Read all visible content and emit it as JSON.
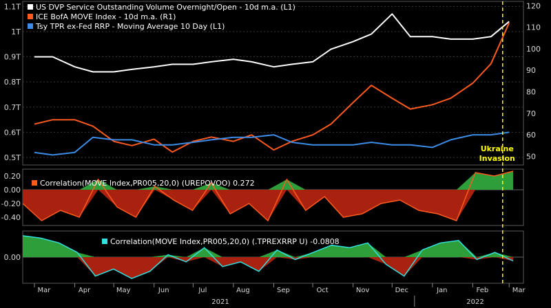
{
  "chart_data": [
    {
      "type": "line",
      "panel": "main",
      "x": [
        "2021-03-01",
        "2021-03-15",
        "2021-04-01",
        "2021-04-15",
        "2021-05-01",
        "2021-05-15",
        "2021-06-01",
        "2021-06-15",
        "2021-07-01",
        "2021-07-15",
        "2021-08-01",
        "2021-08-15",
        "2021-09-01",
        "2021-09-15",
        "2021-10-01",
        "2021-10-15",
        "2021-11-01",
        "2021-11-15",
        "2021-12-01",
        "2021-12-15",
        "2022-01-01",
        "2022-01-15",
        "2022-02-01",
        "2022-02-15",
        "2022-03-01"
      ],
      "left_ticks": [
        "0.5T",
        "0.6T",
        "0.7T",
        "0.8T",
        "0.9T",
        "1T",
        "1.1T"
      ],
      "right_ticks": [
        "50",
        "60",
        "70",
        "80",
        "90",
        "100",
        "110",
        "120"
      ],
      "left_ylim": [
        0.47,
        1.12
      ],
      "right_ylim": [
        46,
        122
      ],
      "series": [
        {
          "name": "US DVP Service Outstanding Volume Overnight/Open - 10d m.a. (L1)",
          "axis": "left",
          "color": "#ffffff",
          "values": [
            0.9,
            0.9,
            0.86,
            0.84,
            0.84,
            0.85,
            0.86,
            0.87,
            0.87,
            0.88,
            0.89,
            0.88,
            0.86,
            0.87,
            0.88,
            0.93,
            0.96,
            0.99,
            1.07,
            0.98,
            0.98,
            0.97,
            0.97,
            0.98,
            1.04
          ]
        },
        {
          "name": "ICE BofA MOVE Index - 10d m.a. (R1)",
          "axis": "right",
          "color": "#ff5a1f",
          "values": [
            65,
            67,
            67,
            64,
            57,
            55,
            58,
            52,
            57,
            59,
            57,
            60,
            53,
            57,
            60,
            65,
            75,
            83,
            77,
            72,
            74,
            77,
            84,
            93,
            112
          ]
        },
        {
          "name": "Tsy TPR ex-Fed RRP - Moving Average 10 Day (L1)",
          "axis": "left",
          "color": "#3c8ce8",
          "values": [
            0.52,
            0.51,
            0.52,
            0.58,
            0.57,
            0.57,
            0.55,
            0.55,
            0.56,
            0.57,
            0.58,
            0.58,
            0.59,
            0.56,
            0.55,
            0.55,
            0.55,
            0.56,
            0.55,
            0.55,
            0.54,
            0.57,
            0.59,
            0.59,
            0.6
          ]
        }
      ],
      "annotation": {
        "text_line1": "Ukraine",
        "text_line2": "Invasion",
        "date": "2022-02-24"
      }
    },
    {
      "type": "area",
      "panel": "correlation-1",
      "legend": "Correlation(MOVE Index,PR005,20,0) (UREPOVOO) 0.272",
      "legend_color": "#ff5a1f",
      "ticks": [
        "0.20",
        "0.00",
        "-0.20",
        "-0.40"
      ],
      "ylim": [
        -0.52,
        0.3
      ],
      "values": [
        -0.2,
        -0.45,
        -0.3,
        -0.4,
        0.15,
        -0.25,
        -0.4,
        0.05,
        -0.15,
        -0.3,
        0.1,
        -0.35,
        -0.2,
        -0.45,
        0.15,
        -0.3,
        -0.1,
        -0.4,
        -0.35,
        -0.2,
        -0.15,
        -0.3,
        -0.35,
        -0.45,
        0.25,
        0.2,
        0.27
      ],
      "positive_color": "#2e9e3a",
      "negative_color": "#a8220f"
    },
    {
      "type": "area",
      "panel": "correlation-2",
      "legend": "Correlation(MOVE Index,PR005,20,0) (.TPREXRRP U) -0.0808",
      "legend_color": "#33e0e0",
      "ticks": [
        "0.00"
      ],
      "ylim": [
        -0.55,
        0.55
      ],
      "values": [
        0.45,
        0.4,
        0.3,
        0.1,
        -0.4,
        -0.25,
        -0.45,
        -0.3,
        0.05,
        -0.1,
        0.2,
        -0.2,
        -0.1,
        -0.3,
        0.15,
        -0.05,
        0.1,
        0.25,
        0.2,
        0.3,
        -0.15,
        -0.4,
        0.15,
        0.3,
        0.35,
        -0.05,
        0.1,
        -0.08
      ],
      "positive_color": "#2e9e3a",
      "negative_color": "#a8220f"
    }
  ],
  "x_axis": {
    "months": [
      "Mar",
      "Apr",
      "May",
      "Jun",
      "Jul",
      "Aug",
      "Sep",
      "Oct",
      "Nov",
      "Dec",
      "Jan",
      "Feb",
      "Mar"
    ],
    "years": [
      "2021",
      "2022"
    ]
  }
}
